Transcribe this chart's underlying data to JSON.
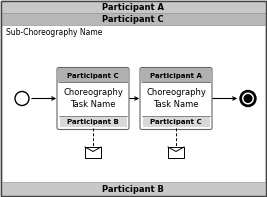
{
  "fig_width": 2.67,
  "fig_height": 1.97,
  "dpi": 100,
  "bg_color": "#ffffff",
  "top_band1_label": "Participant A",
  "top_band2_label": "Participant C",
  "bottom_band_label": "Participant B",
  "sub_label": "Sub-Choreography Name",
  "task1_top_label": "Participant C",
  "task1_bottom_label": "Participant B",
  "task1_body_label": "Choreography\nTask Name",
  "task2_top_label": "Participant A",
  "task2_bottom_label": "Participant C",
  "task2_body_label": "Choreography\nTask Name",
  "band1_color": "#c8c8c8",
  "band2_color": "#b8b8b8",
  "bot_band_color": "#c8c8c8",
  "task_body_color": "#ffffff",
  "task_header_color": "#b0b0b0",
  "task_footer_color": "#d8d8d8",
  "task_border_color": "#666666",
  "outer_border_color": "#444444"
}
